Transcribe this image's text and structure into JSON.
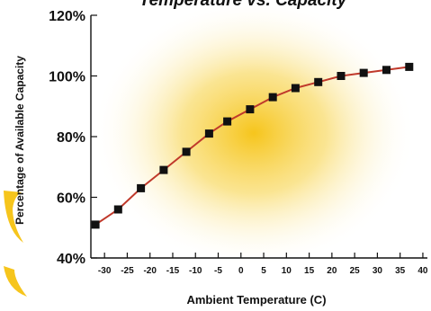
{
  "chart_data": {
    "type": "line",
    "title": "Temperature vs. Capacity",
    "xlabel": "Ambient Temperature (C)",
    "ylabel": "Percentage of Available Capacity",
    "x_ticks": [
      "-30",
      "-25",
      "-20",
      "-15",
      "-10",
      "-5",
      "0",
      "5",
      "10",
      "15",
      "20",
      "25",
      "30",
      "35",
      "40"
    ],
    "y_ticks": [
      "40%",
      "60%",
      "80%",
      "100%",
      "120%"
    ],
    "xlim": [
      -33,
      41
    ],
    "ylim": [
      40,
      120
    ],
    "grid": false,
    "series": [
      {
        "x": [
          -32,
          -27,
          -22,
          -17,
          -12,
          -7,
          -3,
          2,
          7,
          12,
          17,
          22,
          27,
          32,
          37
        ],
        "y": [
          51,
          56,
          63,
          69,
          75,
          81,
          85,
          89,
          93,
          96,
          98,
          100,
          101,
          102,
          103
        ]
      }
    ],
    "colors": {
      "line": "#c0392b",
      "marker": "#111111",
      "glow_center": "#f6c51c",
      "accent": "#f6c51c"
    }
  }
}
